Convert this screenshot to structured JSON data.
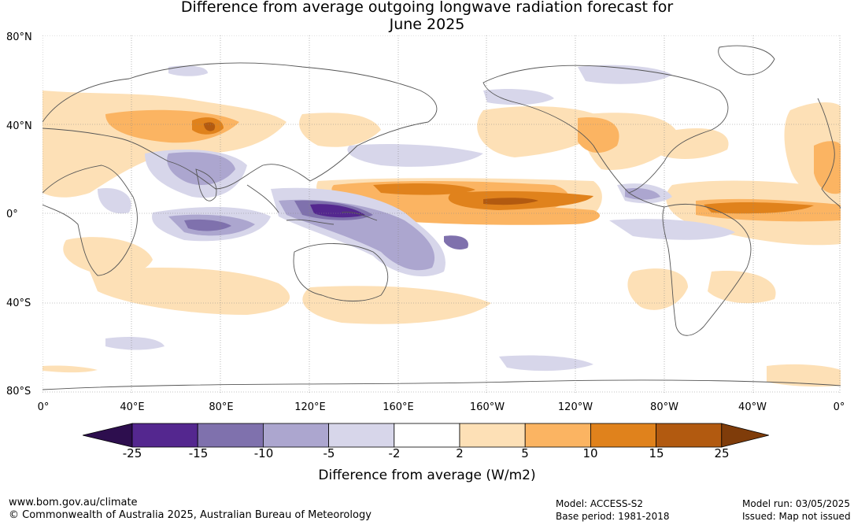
{
  "title": {
    "line1": "Difference from average outgoing longwave radiation forecast for",
    "line2": "June 2025"
  },
  "map": {
    "lat_labels": [
      "80°N",
      "40°N",
      "0°",
      "40°S",
      "80°S"
    ],
    "lon_labels": [
      "0°",
      "40°E",
      "80°E",
      "120°E",
      "160°E",
      "160°W",
      "120°W",
      "80°W",
      "40°W",
      "0°"
    ],
    "grid": true,
    "coastlines": true
  },
  "colorbar": {
    "label": "Difference from average (W/m2)",
    "ticks": [
      "-25",
      "-15",
      "-10",
      "-5",
      "-2",
      "2",
      "5",
      "10",
      "15",
      "25"
    ],
    "colors": [
      "#2d0e4e",
      "#54278f",
      "#7f71ad",
      "#aca6cf",
      "#d7d6ea",
      "#ffffff",
      "#fde0b6",
      "#fbb462",
      "#e0821c",
      "#b25a10",
      "#7f3c0a"
    ]
  },
  "footer": {
    "url": "www.bom.gov.au/climate",
    "copyright": "© Commonwealth of Australia 2025, Australian Bureau of Meteorology",
    "model": "Model: ACCESS-S2",
    "base_period": "Base period: 1981-2018",
    "model_run": "Model run: 03/05/2025",
    "issued": "Issued: Map not issued"
  }
}
